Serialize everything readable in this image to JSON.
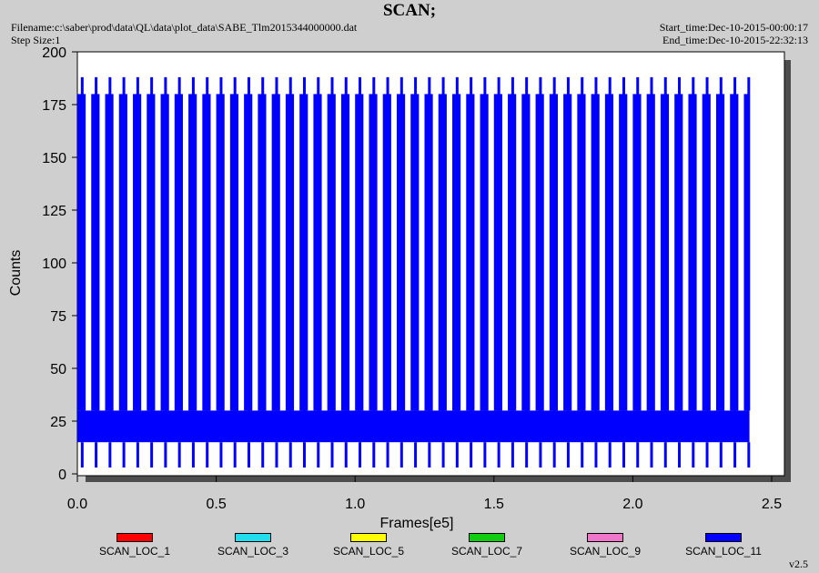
{
  "header": {
    "title": "SCAN;",
    "filename": "Filename:c:\\saber\\prod\\data\\QL\\data\\plot_data\\SABE_Tlm2015344000000.dat",
    "step_size": "Step Size:1",
    "start_time": "Start_time:Dec-10-2015-00:00:17",
    "end_time": "End_time:Dec-10-2015-22:32:13"
  },
  "version": "v2.5",
  "colors": {
    "background": "#cfcfcf",
    "plot_background": "#ffffff",
    "shadow": "#4d4d4d",
    "dominant_series": "#0000ff"
  },
  "chart_data": {
    "type": "line",
    "title": "SCAN;",
    "xlabel": "Frames[e5]",
    "ylabel": "Counts",
    "xlim": [
      0,
      2.5
    ],
    "ylim": [
      0,
      200
    ],
    "x_ticks": [
      "0.0",
      "0.5",
      "1.0",
      "1.5",
      "2.0",
      "2.5"
    ],
    "y_ticks": [
      "0",
      "25",
      "50",
      "75",
      "100",
      "125",
      "150",
      "175",
      "200"
    ],
    "grid": false,
    "legend_position": "bottom",
    "series": [
      {
        "name": "SCAN_LOC_1",
        "color": "#ff0000"
      },
      {
        "name": "SCAN_LOC_3",
        "color": "#22ddee"
      },
      {
        "name": "SCAN_LOC_5",
        "color": "#ffff00"
      },
      {
        "name": "SCAN_LOC_7",
        "color": "#11cc11"
      },
      {
        "name": "SCAN_LOC_9",
        "color": "#ee77cc"
      },
      {
        "name": "SCAN_LOC_11",
        "color": "#0000ff",
        "x_range": [
          0.0,
          2.42
        ],
        "band_low": 15,
        "band_high": 30,
        "spike_high": 180,
        "spike_tall": 188,
        "spike_low": 3,
        "spike_period": 0.05
      }
    ]
  }
}
